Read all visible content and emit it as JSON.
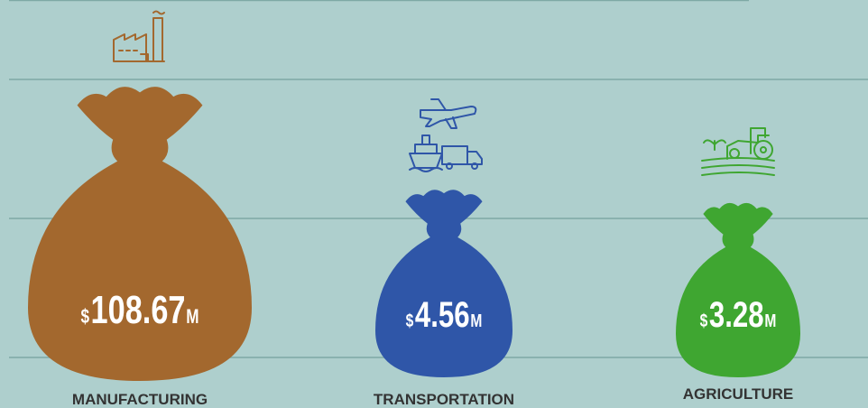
{
  "items": [
    {
      "label": "MANUFACTURING",
      "currency": "$",
      "amount": "108.67",
      "unit": "M",
      "color": "#a3682e"
    },
    {
      "label": "TRANSPORTATION",
      "currency": "$",
      "amount": "4.56",
      "unit": "M",
      "color": "#2f56a8"
    },
    {
      "label": "AGRICULTURE",
      "currency": "$",
      "amount": "3.28",
      "unit": "M",
      "color": "#3fa631"
    }
  ]
}
